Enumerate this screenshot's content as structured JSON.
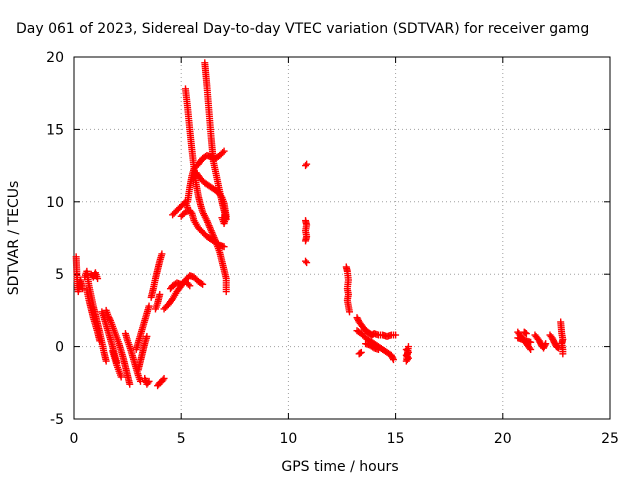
{
  "chart_data": {
    "type": "scatter",
    "title": "Day 061 of 2023, Sidereal Day-to-day VTEC variation (SDTVAR) for receiver gamg",
    "xlabel": "GPS time / hours",
    "ylabel": "SDTVAR / TECUs",
    "xlim": [
      0,
      25
    ],
    "ylim": [
      -5,
      20
    ],
    "xticks": [
      0,
      5,
      10,
      15,
      20,
      25
    ],
    "yticks": [
      -5,
      0,
      5,
      10,
      15,
      20
    ],
    "grid": true,
    "marker": "+",
    "color": "#ff0000",
    "series": [
      {
        "name": "SDTVAR",
        "segments": [
          [
            [
              0.1,
              6.2
            ],
            [
              0.15,
              4.5
            ],
            [
              0.2,
              3.8
            ],
            [
              0.3,
              4.6
            ],
            [
              0.4,
              4.0
            ]
          ],
          [
            [
              0.5,
              4.8
            ],
            [
              0.6,
              5.2
            ],
            [
              0.7,
              4.2
            ],
            [
              0.8,
              3.5
            ],
            [
              0.9,
              2.8
            ],
            [
              1.0,
              2.2
            ],
            [
              1.1,
              1.6
            ],
            [
              1.2,
              1.0
            ],
            [
              1.3,
              0.3
            ],
            [
              1.4,
              -0.4
            ],
            [
              1.5,
              -1.0
            ]
          ],
          [
            [
              0.6,
              3.9
            ],
            [
              0.7,
              3.2
            ],
            [
              0.8,
              2.6
            ],
            [
              0.9,
              2.0
            ],
            [
              1.0,
              1.5
            ],
            [
              1.1,
              1.0
            ],
            [
              1.2,
              0.4
            ]
          ],
          [
            [
              0.8,
              5.0
            ],
            [
              0.9,
              4.8
            ],
            [
              1.0,
              5.1
            ],
            [
              1.1,
              4.7
            ]
          ],
          [
            [
              1.3,
              2.4
            ],
            [
              1.4,
              2.0
            ],
            [
              1.5,
              1.5
            ],
            [
              1.6,
              1.0
            ],
            [
              1.7,
              0.5
            ],
            [
              1.8,
              0.0
            ],
            [
              1.9,
              -0.6
            ],
            [
              2.0,
              -1.1
            ]
          ],
          [
            [
              1.5,
              2.5
            ],
            [
              1.6,
              2.1
            ],
            [
              1.7,
              1.8
            ],
            [
              1.8,
              1.4
            ],
            [
              1.9,
              1.0
            ],
            [
              2.0,
              0.6
            ],
            [
              2.1,
              0.2
            ],
            [
              2.2,
              -0.3
            ],
            [
              2.3,
              -0.8
            ],
            [
              2.4,
              -1.4
            ],
            [
              2.5,
              -2.0
            ],
            [
              2.6,
              -2.6
            ]
          ],
          [
            [
              1.8,
              -0.3
            ],
            [
              1.9,
              -0.8
            ],
            [
              2.0,
              -1.3
            ],
            [
              2.1,
              -1.7
            ],
            [
              2.2,
              -2.1
            ]
          ],
          [
            [
              2.4,
              0.9
            ],
            [
              2.5,
              0.4
            ],
            [
              2.6,
              0.0
            ],
            [
              2.7,
              -0.5
            ],
            [
              2.8,
              -1.0
            ],
            [
              2.9,
              -1.5
            ],
            [
              3.0,
              -2.0
            ],
            [
              3.1,
              -2.4
            ]
          ],
          [
            [
              2.9,
              -0.2
            ],
            [
              3.0,
              0.3
            ],
            [
              3.1,
              0.8
            ],
            [
              3.2,
              1.3
            ],
            [
              3.3,
              1.8
            ],
            [
              3.4,
              2.3
            ],
            [
              3.5,
              2.8
            ]
          ],
          [
            [
              3.0,
              -1.6
            ],
            [
              3.1,
              -1.0
            ],
            [
              3.2,
              -0.4
            ],
            [
              3.3,
              0.2
            ],
            [
              3.4,
              0.7
            ]
          ],
          [
            [
              3.6,
              3.4
            ],
            [
              3.7,
              4.0
            ],
            [
              3.8,
              4.7
            ],
            [
              3.9,
              5.3
            ],
            [
              4.0,
              5.9
            ],
            [
              4.1,
              6.4
            ]
          ],
          [
            [
              3.8,
              2.6
            ],
            [
              3.9,
              3.0
            ],
            [
              4.0,
              3.6
            ]
          ],
          [
            [
              3.9,
              -2.7
            ],
            [
              4.0,
              -2.5
            ],
            [
              4.1,
              -2.4
            ],
            [
              4.2,
              -2.2
            ]
          ],
          [
            [
              3.3,
              -2.2
            ],
            [
              3.4,
              -2.6
            ],
            [
              3.5,
              -2.4
            ]
          ],
          [
            [
              4.2,
              2.6
            ],
            [
              4.4,
              2.9
            ],
            [
              4.6,
              3.3
            ],
            [
              4.8,
              3.8
            ],
            [
              5.0,
              4.2
            ],
            [
              5.2,
              4.6
            ],
            [
              5.4,
              4.9
            ],
            [
              5.6,
              4.8
            ],
            [
              5.8,
              4.5
            ],
            [
              6.0,
              4.3
            ]
          ],
          [
            [
              4.5,
              4.0
            ],
            [
              4.6,
              4.2
            ],
            [
              4.8,
              4.4
            ],
            [
              5.0,
              4.3
            ],
            [
              5.2,
              4.5
            ],
            [
              5.4,
              4.2
            ]
          ],
          [
            [
              4.6,
              9.1
            ],
            [
              4.8,
              9.4
            ],
            [
              5.0,
              9.7
            ],
            [
              5.2,
              10.0
            ],
            [
              5.3,
              9.6
            ]
          ],
          [
            [
              5.3,
              10.0
            ],
            [
              5.4,
              11.0
            ],
            [
              5.5,
              11.8
            ],
            [
              5.6,
              12.3
            ],
            [
              5.8,
              12.6
            ],
            [
              6.0,
              13.0
            ],
            [
              6.2,
              13.2
            ],
            [
              6.4,
              13.1
            ],
            [
              6.6,
              13.0
            ],
            [
              6.8,
              13.2
            ],
            [
              7.0,
              13.5
            ]
          ],
          [
            [
              5.7,
              12.0
            ],
            [
              5.9,
              11.6
            ],
            [
              6.1,
              11.3
            ],
            [
              6.3,
              11.1
            ],
            [
              6.5,
              10.9
            ],
            [
              6.7,
              10.7
            ],
            [
              6.9,
              10.3
            ],
            [
              7.0,
              9.9
            ],
            [
              7.1,
              9.0
            ],
            [
              7.0,
              8.5
            ],
            [
              6.9,
              8.9
            ]
          ],
          [
            [
              5.2,
              17.8
            ],
            [
              5.3,
              16.5
            ],
            [
              5.4,
              15.0
            ],
            [
              5.5,
              13.6
            ],
            [
              5.6,
              12.3
            ],
            [
              5.7,
              11.2
            ],
            [
              5.8,
              10.4
            ],
            [
              5.9,
              9.8
            ],
            [
              6.0,
              9.3
            ],
            [
              6.2,
              8.7
            ],
            [
              6.4,
              8.0
            ],
            [
              6.6,
              7.3
            ],
            [
              6.8,
              6.5
            ],
            [
              6.95,
              5.6
            ],
            [
              7.1,
              4.7
            ],
            [
              7.1,
              3.8
            ]
          ],
          [
            [
              5.0,
              9.0
            ],
            [
              5.2,
              9.3
            ],
            [
              5.4,
              9.4
            ],
            [
              5.5,
              9.2
            ],
            [
              5.6,
              8.7
            ],
            [
              5.8,
              8.2
            ],
            [
              6.0,
              7.9
            ],
            [
              6.2,
              7.6
            ],
            [
              6.4,
              7.4
            ],
            [
              6.6,
              7.2
            ],
            [
              6.8,
              7.0
            ],
            [
              7.0,
              6.9
            ]
          ],
          [
            [
              6.1,
              19.6
            ],
            [
              6.15,
              18.8
            ],
            [
              6.2,
              18.0
            ],
            [
              6.25,
              17.1
            ],
            [
              6.3,
              16.2
            ],
            [
              6.35,
              15.3
            ],
            [
              6.4,
              14.4
            ],
            [
              6.45,
              13.6
            ],
            [
              6.5,
              12.8
            ],
            [
              6.6,
              12.1
            ],
            [
              6.7,
              11.4
            ],
            [
              6.8,
              10.7
            ],
            [
              6.9,
              10.0
            ],
            [
              7.0,
              9.4
            ],
            [
              7.1,
              8.8
            ]
          ],
          [
            [
              10.8,
              12.5
            ],
            [
              10.85,
              12.6
            ]
          ],
          [
            [
              10.8,
              8.7
            ],
            [
              10.85,
              8.4
            ],
            [
              10.8,
              8.0
            ],
            [
              10.85,
              7.6
            ],
            [
              10.8,
              7.3
            ]
          ],
          [
            [
              10.8,
              5.9
            ],
            [
              10.85,
              5.8
            ]
          ],
          [
            [
              12.7,
              5.5
            ],
            [
              12.75,
              5.2
            ],
            [
              12.8,
              4.6
            ],
            [
              12.75,
              4.0
            ],
            [
              12.8,
              3.6
            ],
            [
              12.75,
              3.2
            ],
            [
              12.8,
              2.8
            ],
            [
              12.85,
              2.4
            ]
          ],
          [
            [
              13.2,
              2.0
            ],
            [
              13.3,
              1.7
            ],
            [
              13.4,
              1.5
            ],
            [
              13.5,
              1.3
            ],
            [
              13.6,
              1.1
            ],
            [
              13.7,
              1.0
            ],
            [
              13.8,
              0.9
            ],
            [
              13.9,
              0.8
            ],
            [
              14.0,
              0.9
            ],
            [
              14.2,
              0.8
            ],
            [
              14.4,
              0.8
            ],
            [
              14.6,
              0.7
            ],
            [
              14.8,
              0.8
            ],
            [
              15.0,
              0.8
            ]
          ],
          [
            [
              13.2,
              1.1
            ],
            [
              13.4,
              0.9
            ],
            [
              13.6,
              0.6
            ],
            [
              13.8,
              0.4
            ],
            [
              14.0,
              0.2
            ],
            [
              14.2,
              0.0
            ],
            [
              14.4,
              -0.2
            ],
            [
              14.6,
              -0.4
            ],
            [
              14.8,
              -0.6
            ],
            [
              14.9,
              -0.9
            ]
          ],
          [
            [
              13.6,
              0.2
            ],
            [
              13.8,
              0.1
            ],
            [
              14.0,
              -0.1
            ],
            [
              14.2,
              -0.2
            ]
          ],
          [
            [
              13.3,
              -0.5
            ],
            [
              13.4,
              -0.4
            ]
          ],
          [
            [
              15.5,
              -0.2
            ],
            [
              15.6,
              -0.4
            ],
            [
              15.5,
              -0.6
            ],
            [
              15.6,
              -0.8
            ],
            [
              15.5,
              -1.0
            ],
            [
              15.6,
              0.0
            ]
          ],
          [
            [
              20.7,
              1.0
            ],
            [
              20.8,
              0.8
            ],
            [
              20.9,
              0.6
            ],
            [
              21.0,
              0.4
            ],
            [
              21.1,
              0.2
            ],
            [
              21.2,
              0.0
            ],
            [
              21.3,
              -0.2
            ]
          ],
          [
            [
              20.7,
              0.6
            ],
            [
              20.9,
              0.5
            ],
            [
              21.1,
              0.4
            ],
            [
              21.3,
              0.3
            ]
          ],
          [
            [
              21.0,
              1.0
            ],
            [
              21.1,
              0.9
            ]
          ],
          [
            [
              21.5,
              0.8
            ],
            [
              21.6,
              0.6
            ],
            [
              21.7,
              0.4
            ],
            [
              21.8,
              0.1
            ],
            [
              21.9,
              -0.1
            ],
            [
              22.0,
              0.2
            ]
          ],
          [
            [
              22.2,
              0.8
            ],
            [
              22.3,
              0.6
            ],
            [
              22.4,
              0.3
            ],
            [
              22.5,
              0.0
            ],
            [
              22.6,
              -0.1
            ]
          ],
          [
            [
              22.7,
              1.7
            ],
            [
              22.75,
              0.9
            ],
            [
              22.8,
              0.5
            ],
            [
              22.75,
              0.2
            ],
            [
              22.8,
              -0.2
            ],
            [
              22.8,
              -0.5
            ]
          ]
        ]
      }
    ]
  }
}
